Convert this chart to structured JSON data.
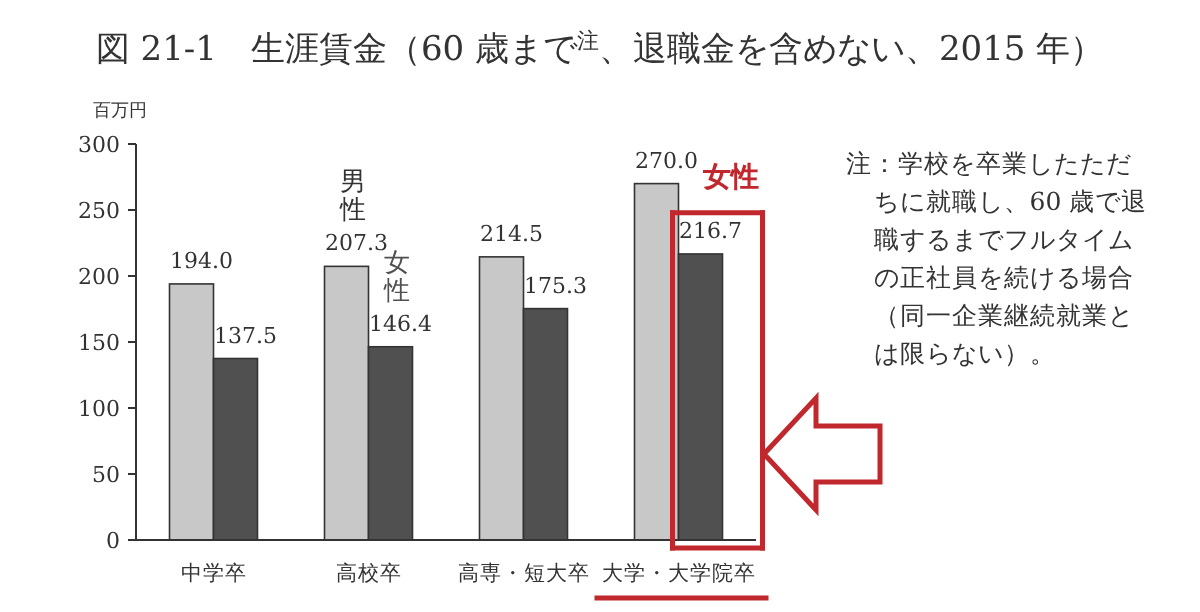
{
  "chart_data": {
    "type": "bar",
    "title": "図 21-1　生涯賃金（60 歳まで$^{注}$、退職金を含めない、2015 年）",
    "ylabel": "百万円",
    "categories": [
      "中学卒",
      "高校卒",
      "高専・短大卒",
      "大学・大学院卒"
    ],
    "series": [
      {
        "name": "男性",
        "color": "#c8c8c8",
        "values": [
          194.0,
          207.3,
          214.5,
          270.0
        ],
        "value_labels": [
          "194.0",
          "207.3",
          "214.5",
          "270.0"
        ]
      },
      {
        "name": "女性",
        "color": "#505050",
        "values": [
          137.5,
          146.4,
          175.3,
          216.7
        ],
        "value_labels": [
          "137.5",
          "146.4",
          "175.3",
          "216.7"
        ]
      }
    ],
    "ylim": [
      0,
      300
    ],
    "yticks": [
      0,
      50,
      100,
      150,
      200,
      250,
      300
    ],
    "annotations": [
      "女性",
      "注：学校を卒業したただちに就職し、60 歳で退職するまでフルタイムの正社員を続ける場合（同一企業継続就業とは限らない）。"
    ]
  }
}
